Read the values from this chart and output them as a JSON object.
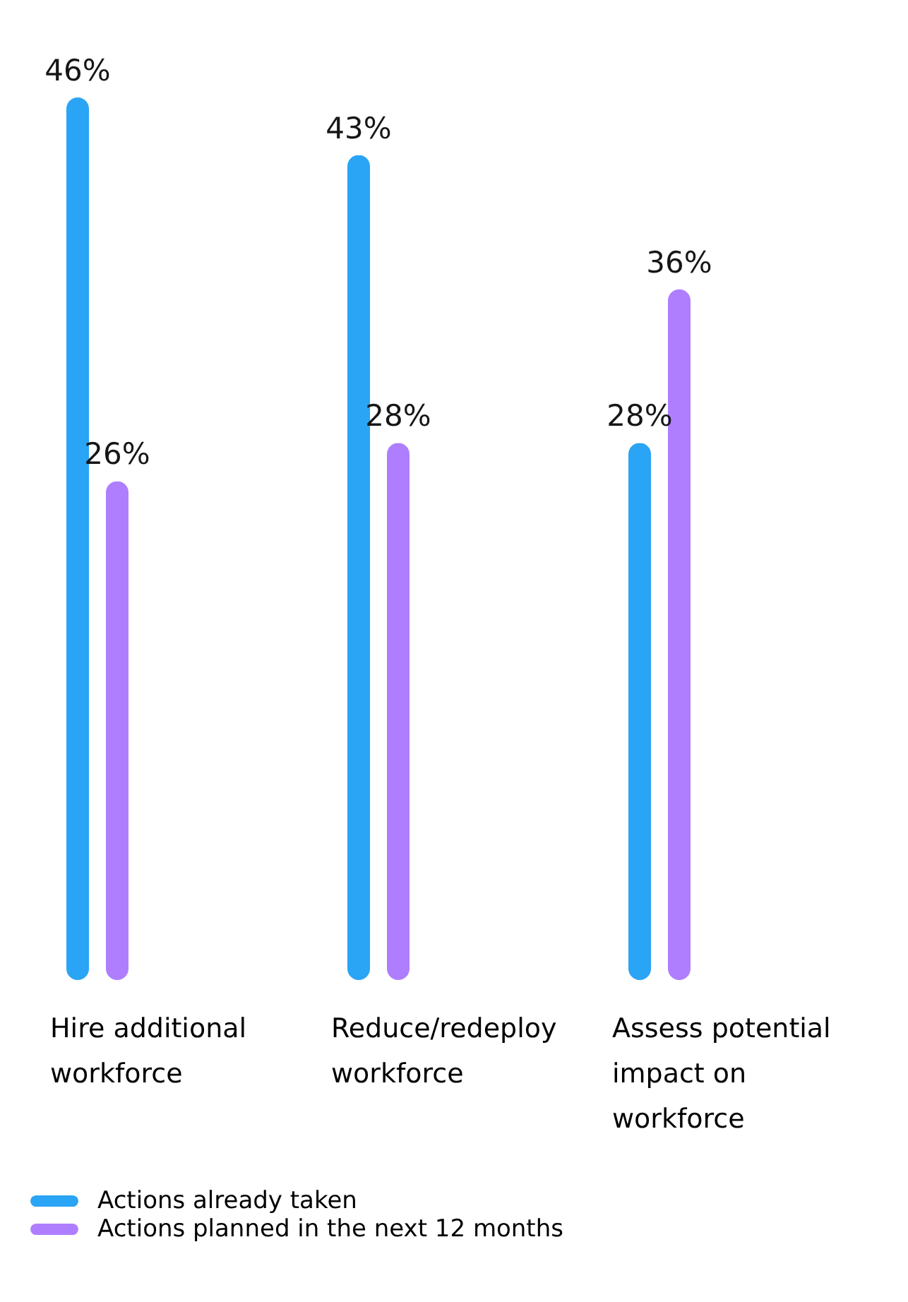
{
  "chart_data": {
    "type": "bar",
    "categories": [
      "Hire additional workforce",
      "Reduce/redeploy workforce",
      "Assess potential impact on workforce"
    ],
    "series": [
      {
        "name": "Actions already taken",
        "color": "#2aa4f4",
        "values": [
          46,
          43,
          28
        ],
        "value_labels": [
          "46%",
          "43%",
          "28%"
        ]
      },
      {
        "name": "Actions planned in the next 12 months",
        "color": "#ae7eff",
        "values": [
          26,
          28,
          36
        ],
        "value_labels": [
          "26%",
          "28%",
          "36%"
        ]
      }
    ],
    "legend": "bottom",
    "grid": false,
    "tick_labels": "x"
  }
}
